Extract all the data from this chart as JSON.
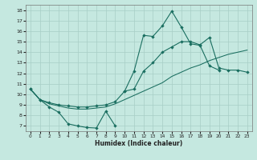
{
  "xlabel": "Humidex (Indice chaleur)",
  "bg_color": "#c5e8e0",
  "grid_color": "#a8cec6",
  "line_color": "#1a6e60",
  "xlim": [
    -0.5,
    23.5
  ],
  "ylim": [
    6.5,
    18.5
  ],
  "xticks": [
    0,
    1,
    2,
    3,
    4,
    5,
    6,
    7,
    8,
    9,
    10,
    11,
    12,
    13,
    14,
    15,
    16,
    17,
    18,
    19,
    20,
    21,
    22,
    23
  ],
  "yticks": [
    7,
    8,
    9,
    10,
    11,
    12,
    13,
    14,
    15,
    16,
    17,
    18
  ],
  "curve_dip": {
    "x": [
      0,
      1,
      2,
      3,
      4,
      5,
      6,
      7,
      8,
      9
    ],
    "y": [
      10.5,
      9.5,
      8.8,
      8.3,
      7.2,
      7.0,
      6.85,
      6.8,
      8.4,
      7.0
    ]
  },
  "curve_peak": {
    "x": [
      0,
      1,
      2,
      3,
      4,
      5,
      6,
      7,
      8,
      9,
      10,
      11,
      12,
      13,
      14,
      15,
      16,
      17,
      18,
      19,
      20
    ],
    "y": [
      10.5,
      9.5,
      9.2,
      9.0,
      8.9,
      8.8,
      8.8,
      8.9,
      9.0,
      9.3,
      10.3,
      12.2,
      15.6,
      15.5,
      16.5,
      17.9,
      16.4,
      14.8,
      14.65,
      12.7,
      12.3
    ]
  },
  "curve_lower": {
    "x": [
      0,
      1,
      2,
      3,
      4,
      5,
      6,
      7,
      8,
      9,
      10,
      11,
      12,
      13,
      14,
      15,
      16,
      17,
      18,
      19,
      20,
      21,
      22,
      23
    ],
    "y": [
      10.5,
      9.5,
      9.1,
      8.9,
      8.7,
      8.6,
      8.6,
      8.7,
      8.8,
      9.1,
      9.5,
      9.9,
      10.3,
      10.7,
      11.1,
      11.7,
      12.1,
      12.5,
      12.8,
      13.2,
      13.5,
      13.8,
      14.0,
      14.2
    ]
  },
  "curve_upper_right": {
    "x": [
      10,
      11,
      12,
      13,
      14,
      15,
      16,
      17,
      18,
      19,
      20,
      21,
      22,
      23
    ],
    "y": [
      10.3,
      10.5,
      12.2,
      13.0,
      14.0,
      14.5,
      15.0,
      15.0,
      14.7,
      15.4,
      12.5,
      12.3,
      12.3,
      12.1
    ]
  }
}
